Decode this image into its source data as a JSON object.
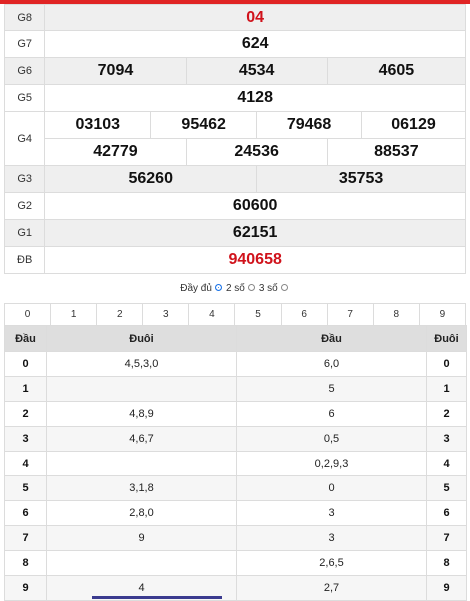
{
  "prizes": {
    "g8": {
      "label": "G8",
      "values": [
        "04"
      ]
    },
    "g7": {
      "label": "G7",
      "values": [
        "624"
      ]
    },
    "g6": {
      "label": "G6",
      "values": [
        "7094",
        "4534",
        "4605"
      ]
    },
    "g5": {
      "label": "G5",
      "values": [
        "4128"
      ]
    },
    "g4": {
      "label": "G4",
      "row1": [
        "03103",
        "95462",
        "79468",
        "06129"
      ],
      "row2": [
        "42779",
        "24536",
        "88537"
      ]
    },
    "g3": {
      "label": "G3",
      "values": [
        "56260",
        "35753"
      ]
    },
    "g2": {
      "label": "G2",
      "values": [
        "60600"
      ]
    },
    "g1": {
      "label": "G1",
      "values": [
        "62151"
      ]
    },
    "db": {
      "label": "ĐB",
      "values": [
        "940658"
      ]
    }
  },
  "colors": {
    "special_red": "#d0121b",
    "accent_blue": "#1a73e8",
    "top_bar": "#e02424"
  },
  "display_options": {
    "full_label": "Đầy đủ",
    "two_digit_label": "2 số",
    "three_digit_label": "3 số",
    "selected": "2 số"
  },
  "digit_filter": [
    "0",
    "1",
    "2",
    "3",
    "4",
    "5",
    "6",
    "7",
    "8",
    "9"
  ],
  "loto_table": {
    "headers": {
      "dau": "Đầu",
      "duoi": "Đuôi",
      "dau2": "Đầu",
      "duoi2": "Đuôi"
    },
    "rows": [
      {
        "k": "0",
        "duoi": "4,5,3,0",
        "dau": "6,0",
        "k2": "0"
      },
      {
        "k": "1",
        "duoi": "",
        "dau": "5",
        "k2": "1"
      },
      {
        "k": "2",
        "duoi": "4,8,9",
        "dau": "6",
        "k2": "2"
      },
      {
        "k": "3",
        "duoi": "4,6,7",
        "dau": "0,5",
        "k2": "3"
      },
      {
        "k": "4",
        "duoi": "",
        "dau": "0,2,9,3",
        "k2": "4"
      },
      {
        "k": "5",
        "duoi": "3,1,8",
        "dau": "0",
        "k2": "5"
      },
      {
        "k": "6",
        "duoi": "2,8,0",
        "dau": "3",
        "k2": "6"
      },
      {
        "k": "7",
        "duoi": "9",
        "dau": "3",
        "k2": "7"
      },
      {
        "k": "8",
        "duoi": "",
        "dau": "2,6,5",
        "k2": "8"
      },
      {
        "k": "9",
        "duoi": "4",
        "dau": "2,7",
        "k2": "9"
      }
    ]
  }
}
